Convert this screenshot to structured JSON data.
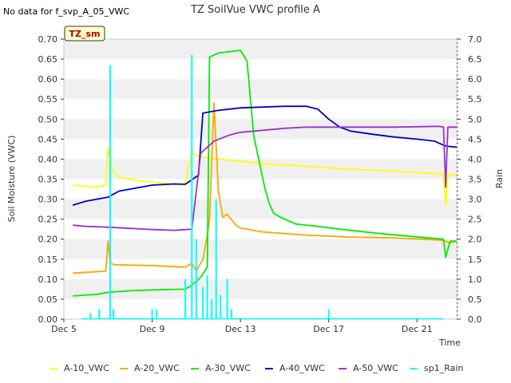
{
  "chart_data": {
    "type": "line",
    "title": "TZ SoilVue VWC profile A",
    "note": "No data for f_svp_A_05_VWC",
    "site_label": "TZ_sm",
    "xlabel": "Time",
    "ylabel": "Soil Moisture (VWC)",
    "y2label": "Rain",
    "xlim": [
      5,
      22.8
    ],
    "ylim": [
      0,
      0.7
    ],
    "y2lim": [
      0,
      7.0
    ],
    "x_ticks": [
      5,
      9,
      13,
      17,
      21
    ],
    "x_tick_labels": [
      "Dec 5",
      "Dec 9",
      "Dec 13",
      "Dec 17",
      "Dec 21"
    ],
    "y_ticks": [
      "0.00",
      "0.05",
      "0.10",
      "0.15",
      "0.20",
      "0.25",
      "0.30",
      "0.35",
      "0.40",
      "0.45",
      "0.50",
      "0.55",
      "0.60",
      "0.65",
      "0.70"
    ],
    "y2_ticks": [
      "0.0",
      "0.5",
      "1.0",
      "1.5",
      "2.0",
      "2.5",
      "3.0",
      "3.5",
      "4.0",
      "4.5",
      "5.0",
      "5.5",
      "6.0",
      "6.5",
      "7.0"
    ],
    "series": [
      {
        "name": "A-10_VWC",
        "color": "#ffff00",
        "axis": "left",
        "x": [
          5.4,
          6.5,
          6.9,
          7.0,
          7.2,
          7.5,
          8.5,
          9.5,
          10.2,
          10.5,
          10.8,
          11.2,
          12,
          13,
          14,
          16,
          18,
          20,
          21.5,
          22.2,
          22.3,
          22.4,
          22.8
        ],
        "y": [
          0.335,
          0.33,
          0.335,
          0.43,
          0.37,
          0.355,
          0.345,
          0.34,
          0.335,
          0.34,
          0.415,
          0.405,
          0.4,
          0.395,
          0.388,
          0.382,
          0.375,
          0.37,
          0.365,
          0.363,
          0.285,
          0.36,
          0.362
        ]
      },
      {
        "name": "A-20_VWC",
        "color": "#ffa500",
        "axis": "left",
        "x": [
          5.4,
          6.9,
          7.0,
          7.1,
          7.3,
          8,
          9,
          10.5,
          10.8,
          11.0,
          11.3,
          11.5,
          11.6,
          11.8,
          12.0,
          12.2,
          12.4,
          12.8,
          13,
          14,
          16,
          18,
          20,
          22,
          22.3,
          22.5,
          22.8
        ],
        "y": [
          0.115,
          0.12,
          0.195,
          0.14,
          0.136,
          0.135,
          0.134,
          0.13,
          0.14,
          0.12,
          0.15,
          0.21,
          0.25,
          0.54,
          0.32,
          0.255,
          0.262,
          0.235,
          0.228,
          0.218,
          0.21,
          0.205,
          0.203,
          0.198,
          0.195,
          0.19,
          0.195
        ],
        "annotation": "A-20_VWC peaks at 0.540 around Dec 11.8"
      },
      {
        "name": "A-30_VWC",
        "color": "#00ee00",
        "axis": "left",
        "x": [
          5.4,
          6.5,
          7.0,
          8,
          9,
          10.5,
          10.8,
          11.2,
          11.5,
          11.6,
          12,
          13,
          13.3,
          13.6,
          13.9,
          14.1,
          14.3,
          14.5,
          14.8,
          15.5,
          16.5,
          17.5,
          18.5,
          19.5,
          20.5,
          21.5,
          22.2,
          22.3,
          22.5,
          22.8
        ],
        "y": [
          0.058,
          0.062,
          0.067,
          0.071,
          0.073,
          0.075,
          0.085,
          0.105,
          0.13,
          0.655,
          0.665,
          0.672,
          0.645,
          0.46,
          0.38,
          0.33,
          0.29,
          0.265,
          0.255,
          0.238,
          0.232,
          0.225,
          0.219,
          0.213,
          0.208,
          0.203,
          0.2,
          0.155,
          0.195,
          0.195
        ]
      },
      {
        "name": "A-40_VWC",
        "color": "#0000cc",
        "axis": "left",
        "x": [
          5.4,
          6,
          7,
          7.5,
          8,
          9,
          10,
          10.5,
          11.1,
          11.3,
          12,
          13,
          14,
          15,
          16,
          16.5,
          17,
          17.5,
          18,
          19,
          20,
          21,
          21.8,
          22.2,
          22.4,
          22.8
        ],
        "y": [
          0.285,
          0.295,
          0.305,
          0.32,
          0.325,
          0.335,
          0.338,
          0.337,
          0.36,
          0.515,
          0.522,
          0.528,
          0.53,
          0.532,
          0.532,
          0.525,
          0.5,
          0.48,
          0.47,
          0.462,
          0.455,
          0.45,
          0.445,
          0.435,
          0.432,
          0.43
        ]
      },
      {
        "name": "A-50_VWC",
        "color": "#9932cc",
        "axis": "left",
        "x": [
          5.4,
          6,
          7,
          8,
          9,
          10,
          10.8,
          11.2,
          11.8,
          12.5,
          13,
          14,
          15,
          16,
          17,
          18,
          19,
          20,
          21,
          22,
          22.2,
          22.3,
          22.4,
          22.8
        ],
        "y": [
          0.235,
          0.232,
          0.23,
          0.227,
          0.224,
          0.222,
          0.225,
          0.415,
          0.445,
          0.46,
          0.467,
          0.472,
          0.477,
          0.48,
          0.48,
          0.48,
          0.48,
          0.48,
          0.481,
          0.482,
          0.48,
          0.33,
          0.48,
          0.48
        ]
      },
      {
        "name": "sp1_Rain",
        "color": "#00ffff",
        "axis": "right",
        "kind": "impulses",
        "x": [
          5.8,
          6.2,
          6.6,
          6.9,
          7.1,
          7.25,
          8.0,
          8.5,
          9.0,
          9.2,
          10.5,
          10.8,
          11.0,
          11.3,
          11.5,
          11.7,
          11.9,
          12.1,
          12.4,
          12.6,
          17.0
        ],
        "y": [
          0.0,
          0.15,
          0.25,
          0.0,
          6.35,
          0.25,
          0.0,
          0.0,
          0.25,
          0.25,
          1.0,
          6.6,
          2.0,
          0.8,
          1.1,
          0.5,
          3.0,
          0.6,
          1.0,
          0.25,
          0.25
        ]
      }
    ]
  }
}
